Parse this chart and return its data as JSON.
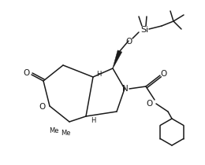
{
  "bg_color": "#ffffff",
  "line_color": "#1a1a1a",
  "line_width": 1.1,
  "font_size": 6.5,
  "figsize": [
    2.6,
    2.1
  ],
  "dpi": 100,
  "xlim": [
    0,
    260
  ],
  "ylim": [
    0,
    210
  ]
}
